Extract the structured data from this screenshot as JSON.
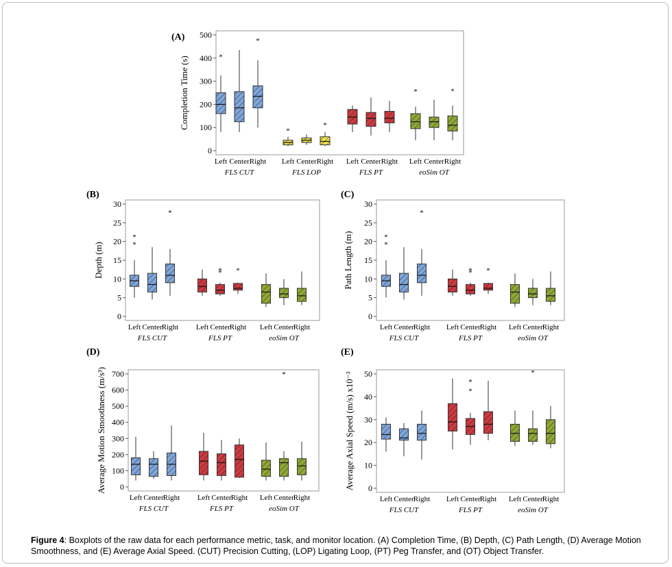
{
  "caption": {
    "label": "Figure 4",
    "text": ": Boxplots of the raw data for each performance metric, task, and monitor location. (A) Completion Time, (B) Depth, (C) Path Length, (D) Average Motion Smoothness, and (E) Average Axial Speed. (CUT) Precision Cutting, (LOP) Ligating Loop, (PT) Peg Transfer, and (OT) Object Transfer."
  },
  "colors": {
    "blue": "#7ea6dc",
    "yellow": "#f2e24c",
    "red": "#cd3a40",
    "green": "#8fa935"
  },
  "chart_data": [
    {
      "panel": "(A)",
      "type": "box",
      "ylabel": "Completion Time (s)",
      "ylim": [
        0,
        500
      ],
      "yticks": [
        0,
        100,
        200,
        300,
        400,
        500
      ],
      "locations": [
        "Left",
        "Center",
        "Right"
      ],
      "groups": [
        {
          "name": "FLS CUT",
          "color": "blue",
          "boxes": [
            {
              "min": 80,
              "q1": 160,
              "median": 200,
              "q3": 250,
              "max": 325,
              "outliers": [
                410
              ]
            },
            {
              "min": 80,
              "q1": 125,
              "median": 185,
              "q3": 255,
              "max": 435,
              "outliers": []
            },
            {
              "min": 100,
              "q1": 185,
              "median": 235,
              "q3": 280,
              "max": 390,
              "outliers": [
                480
              ]
            }
          ]
        },
        {
          "name": "FLS LOP",
          "color": "yellow",
          "boxes": [
            {
              "min": 20,
              "q1": 25,
              "median": 35,
              "q3": 45,
              "max": 60,
              "outliers": [
                90
              ]
            },
            {
              "min": 25,
              "q1": 35,
              "median": 45,
              "q3": 55,
              "max": 70,
              "outliers": []
            },
            {
              "min": 20,
              "q1": 25,
              "median": 40,
              "q3": 60,
              "max": 80,
              "outliers": [
                115
              ]
            }
          ]
        },
        {
          "name": "FLS PT",
          "color": "red",
          "boxes": [
            {
              "min": 80,
              "q1": 115,
              "median": 145,
              "q3": 178,
              "max": 195,
              "outliers": []
            },
            {
              "min": 65,
              "q1": 105,
              "median": 140,
              "q3": 165,
              "max": 230,
              "outliers": []
            },
            {
              "min": 80,
              "q1": 120,
              "median": 140,
              "q3": 170,
              "max": 215,
              "outliers": []
            }
          ]
        },
        {
          "name": "eoSim OT",
          "color": "green",
          "boxes": [
            {
              "min": 45,
              "q1": 95,
              "median": 125,
              "q3": 160,
              "max": 190,
              "outliers": [
                260
              ]
            },
            {
              "min": 45,
              "q1": 100,
              "median": 125,
              "q3": 145,
              "max": 220,
              "outliers": []
            },
            {
              "min": 45,
              "q1": 85,
              "median": 110,
              "q3": 150,
              "max": 195,
              "outliers": [
                262
              ]
            }
          ]
        }
      ]
    },
    {
      "panel": "(B)",
      "type": "box",
      "ylabel": "Depth (m)",
      "ylim": [
        0,
        30
      ],
      "yticks": [
        0,
        5,
        10,
        15,
        20,
        25,
        30
      ],
      "locations": [
        "Left",
        "Center",
        "Right"
      ],
      "groups": [
        {
          "name": "FLS CUT",
          "color": "blue",
          "boxes": [
            {
              "min": 5,
              "q1": 8,
              "median": 9.5,
              "q3": 11,
              "max": 15,
              "outliers": [
                19.5,
                21.5
              ]
            },
            {
              "min": 4.5,
              "q1": 6.5,
              "median": 8.5,
              "q3": 11.5,
              "max": 18.5,
              "outliers": []
            },
            {
              "min": 5.5,
              "q1": 9,
              "median": 11,
              "q3": 14,
              "max": 18,
              "outliers": [
                28
              ]
            }
          ]
        },
        {
          "name": "FLS PT",
          "color": "red",
          "boxes": [
            {
              "min": 5.5,
              "q1": 6.5,
              "median": 8,
              "q3": 10,
              "max": 12.5,
              "outliers": []
            },
            {
              "min": 5.5,
              "q1": 6,
              "median": 7,
              "q3": 8.5,
              "max": 9,
              "outliers": [
                12,
                12.5
              ]
            },
            {
              "min": 6,
              "q1": 7,
              "median": 7.5,
              "q3": 8.8,
              "max": 9,
              "outliers": [
                12.5
              ]
            }
          ]
        },
        {
          "name": "eoSim OT",
          "color": "green",
          "boxes": [
            {
              "min": 2.5,
              "q1": 3.5,
              "median": 6.5,
              "q3": 8.5,
              "max": 11.5,
              "outliers": []
            },
            {
              "min": 3,
              "q1": 5,
              "median": 6,
              "q3": 7.5,
              "max": 10,
              "outliers": []
            },
            {
              "min": 3,
              "q1": 4,
              "median": 5.5,
              "q3": 7.5,
              "max": 12,
              "outliers": []
            }
          ]
        }
      ]
    },
    {
      "panel": "(C)",
      "type": "box",
      "ylabel": "Path Length (m)",
      "ylim": [
        0,
        30
      ],
      "yticks": [
        0,
        5,
        10,
        15,
        20,
        25,
        30
      ],
      "locations": [
        "Left",
        "Center",
        "Right"
      ],
      "groups": [
        {
          "name": "FLS CUT",
          "color": "blue",
          "boxes": [
            {
              "min": 5,
              "q1": 8,
              "median": 9.5,
              "q3": 11,
              "max": 15,
              "outliers": [
                19.5,
                21.5
              ]
            },
            {
              "min": 4.5,
              "q1": 6.5,
              "median": 8.5,
              "q3": 11.5,
              "max": 18.5,
              "outliers": []
            },
            {
              "min": 5.5,
              "q1": 9,
              "median": 11,
              "q3": 14,
              "max": 18,
              "outliers": [
                28
              ]
            }
          ]
        },
        {
          "name": "FLS PT",
          "color": "red",
          "boxes": [
            {
              "min": 5.5,
              "q1": 6.5,
              "median": 8,
              "q3": 10,
              "max": 12.5,
              "outliers": []
            },
            {
              "min": 5.5,
              "q1": 6,
              "median": 7,
              "q3": 8.5,
              "max": 9,
              "outliers": [
                12,
                12.5
              ]
            },
            {
              "min": 6,
              "q1": 7,
              "median": 7.5,
              "q3": 8.8,
              "max": 9,
              "outliers": [
                12.5
              ]
            }
          ]
        },
        {
          "name": "eoSim OT",
          "color": "green",
          "boxes": [
            {
              "min": 2.5,
              "q1": 3.5,
              "median": 6.5,
              "q3": 8.5,
              "max": 11.5,
              "outliers": []
            },
            {
              "min": 3,
              "q1": 5,
              "median": 6,
              "q3": 7.5,
              "max": 10,
              "outliers": []
            },
            {
              "min": 3,
              "q1": 4,
              "median": 5.5,
              "q3": 7.5,
              "max": 12,
              "outliers": []
            }
          ]
        }
      ]
    },
    {
      "panel": "(D)",
      "type": "box",
      "ylabel": "Average Motion Smoothness (m/s³)",
      "ylim": [
        0,
        700
      ],
      "yticks": [
        0,
        100,
        200,
        300,
        400,
        500,
        600,
        700
      ],
      "locations": [
        "Left",
        "Center",
        "Right"
      ],
      "groups": [
        {
          "name": "FLS CUT",
          "color": "blue",
          "boxes": [
            {
              "min": 40,
              "q1": 75,
              "median": 140,
              "q3": 180,
              "max": 310,
              "outliers": []
            },
            {
              "min": 50,
              "q1": 65,
              "median": 140,
              "q3": 175,
              "max": 220,
              "outliers": []
            },
            {
              "min": 40,
              "q1": 70,
              "median": 140,
              "q3": 210,
              "max": 380,
              "outliers": []
            }
          ]
        },
        {
          "name": "FLS PT",
          "color": "red",
          "boxes": [
            {
              "min": 40,
              "q1": 75,
              "median": 160,
              "q3": 220,
              "max": 335,
              "outliers": []
            },
            {
              "min": 40,
              "q1": 70,
              "median": 150,
              "q3": 205,
              "max": 290,
              "outliers": []
            },
            {
              "min": 55,
              "q1": 60,
              "median": 170,
              "q3": 260,
              "max": 300,
              "outliers": []
            }
          ]
        },
        {
          "name": "eoSim OT",
          "color": "green",
          "boxes": [
            {
              "min": 40,
              "q1": 65,
              "median": 110,
              "q3": 165,
              "max": 275,
              "outliers": []
            },
            {
              "min": 40,
              "q1": 65,
              "median": 150,
              "q3": 175,
              "max": 220,
              "outliers": [
                705
              ]
            },
            {
              "min": 40,
              "q1": 75,
              "median": 130,
              "q3": 175,
              "max": 280,
              "outliers": []
            }
          ]
        }
      ]
    },
    {
      "panel": "(E)",
      "type": "box",
      "ylabel": "Average Axial Speed (m/s) x10⁻³",
      "ylim": [
        0,
        50
      ],
      "yticks": [
        0,
        10,
        20,
        30,
        40,
        50
      ],
      "locations": [
        "Left",
        "Center",
        "Right"
      ],
      "groups": [
        {
          "name": "FLS CUT",
          "color": "blue",
          "boxes": [
            {
              "min": 16,
              "q1": 21.5,
              "median": 23.5,
              "q3": 28,
              "max": 31,
              "outliers": []
            },
            {
              "min": 14,
              "q1": 21,
              "median": 22,
              "q3": 26,
              "max": 28.5,
              "outliers": []
            },
            {
              "min": 12.5,
              "q1": 21,
              "median": 24,
              "q3": 28,
              "max": 34,
              "outliers": []
            }
          ]
        },
        {
          "name": "FLS PT",
          "color": "red",
          "boxes": [
            {
              "min": 17,
              "q1": 25,
              "median": 29,
              "q3": 37,
              "max": 48,
              "outliers": []
            },
            {
              "min": 19,
              "q1": 23.5,
              "median": 27,
              "q3": 30.5,
              "max": 33,
              "outliers": [
                43,
                47
              ]
            },
            {
              "min": 21,
              "q1": 24,
              "median": 28,
              "q3": 33.5,
              "max": 47,
              "outliers": []
            }
          ]
        },
        {
          "name": "eoSim OT",
          "color": "green",
          "boxes": [
            {
              "min": 18.5,
              "q1": 20.5,
              "median": 24,
              "q3": 28,
              "max": 34,
              "outliers": []
            },
            {
              "min": 19,
              "q1": 20.5,
              "median": 24,
              "q3": 26,
              "max": 34,
              "outliers": [
                51
              ]
            },
            {
              "min": 17.5,
              "q1": 19.5,
              "median": 24,
              "q3": 30,
              "max": 36,
              "outliers": []
            }
          ]
        }
      ]
    }
  ]
}
